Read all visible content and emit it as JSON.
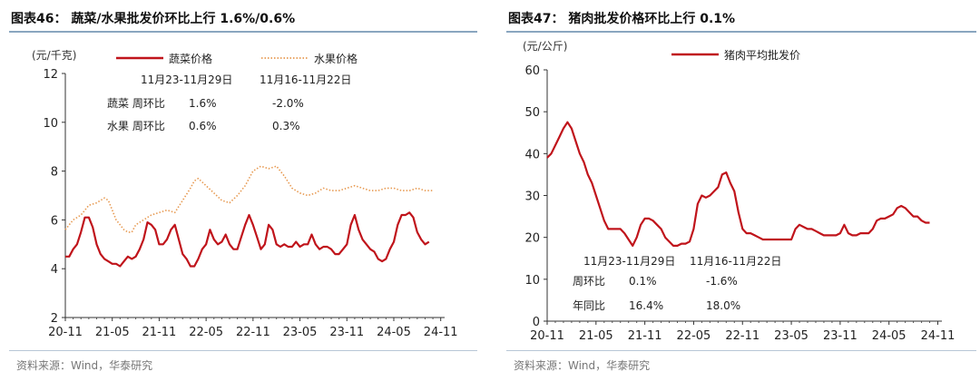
{
  "left": {
    "title": "图表46：  蔬菜/水果批发价环比上行 1.6%/0.6%",
    "source": "资料来源：Wind，华泰研究",
    "chart_data": {
      "type": "line",
      "ylabel": "(元/千克)",
      "ylim": [
        2,
        12
      ],
      "yticks": [
        "2",
        "4",
        "6",
        "8",
        "10",
        "12"
      ],
      "xticks": [
        "20-11",
        "21-05",
        "21-11",
        "22-05",
        "22-11",
        "23-05",
        "23-11",
        "24-05",
        "24-11"
      ],
      "xrange": [
        0,
        48.5
      ],
      "series": [
        {
          "name": "蔬菜价格",
          "color": "#c0141b",
          "style": "solid",
          "points": [
            [
              0,
              4.5
            ],
            [
              0.5,
              4.5
            ],
            [
              1,
              4.8
            ],
            [
              1.5,
              5.0
            ],
            [
              2,
              5.5
            ],
            [
              2.5,
              6.1
            ],
            [
              3,
              6.1
            ],
            [
              3.5,
              5.7
            ],
            [
              4,
              5.0
            ],
            [
              4.5,
              4.6
            ],
            [
              5,
              4.4
            ],
            [
              5.5,
              4.3
            ],
            [
              6,
              4.2
            ],
            [
              6.5,
              4.2
            ],
            [
              7,
              4.1
            ],
            [
              7.5,
              4.3
            ],
            [
              8,
              4.5
            ],
            [
              8.5,
              4.4
            ],
            [
              9,
              4.5
            ],
            [
              9.5,
              4.8
            ],
            [
              10,
              5.2
            ],
            [
              10.5,
              5.9
            ],
            [
              11,
              5.8
            ],
            [
              11.5,
              5.6
            ],
            [
              12,
              5.0
            ],
            [
              12.5,
              5.0
            ],
            [
              13,
              5.2
            ],
            [
              13.5,
              5.6
            ],
            [
              14,
              5.8
            ],
            [
              14.5,
              5.2
            ],
            [
              15,
              4.6
            ],
            [
              15.5,
              4.4
            ],
            [
              16,
              4.1
            ],
            [
              16.5,
              4.1
            ],
            [
              17,
              4.4
            ],
            [
              17.5,
              4.8
            ],
            [
              18,
              5.0
            ],
            [
              18.5,
              5.6
            ],
            [
              19,
              5.2
            ],
            [
              19.5,
              5.0
            ],
            [
              20,
              5.1
            ],
            [
              20.5,
              5.4
            ],
            [
              21,
              5.0
            ],
            [
              21.5,
              4.8
            ],
            [
              22,
              4.8
            ],
            [
              22.5,
              5.3
            ],
            [
              23,
              5.8
            ],
            [
              23.5,
              6.2
            ],
            [
              24,
              5.8
            ],
            [
              24.5,
              5.3
            ],
            [
              25,
              4.8
            ],
            [
              25.5,
              5.0
            ],
            [
              26,
              5.8
            ],
            [
              26.5,
              5.6
            ],
            [
              27,
              5.0
            ],
            [
              27.5,
              4.9
            ],
            [
              28,
              5.0
            ],
            [
              28.5,
              4.9
            ],
            [
              29,
              4.9
            ],
            [
              29.5,
              5.1
            ],
            [
              30,
              4.9
            ],
            [
              30.5,
              5.0
            ],
            [
              31,
              5.0
            ],
            [
              31.5,
              5.4
            ],
            [
              32,
              5.0
            ],
            [
              32.5,
              4.8
            ],
            [
              33,
              4.9
            ],
            [
              33.5,
              4.9
            ],
            [
              34,
              4.8
            ],
            [
              34.5,
              4.6
            ],
            [
              35,
              4.6
            ],
            [
              35.5,
              4.8
            ],
            [
              36,
              5.0
            ],
            [
              36.5,
              5.8
            ],
            [
              37,
              6.2
            ],
            [
              37.5,
              5.6
            ],
            [
              38,
              5.2
            ],
            [
              38.5,
              5.0
            ],
            [
              39,
              4.8
            ],
            [
              39.5,
              4.7
            ],
            [
              40,
              4.4
            ],
            [
              40.5,
              4.3
            ],
            [
              41,
              4.4
            ],
            [
              41.5,
              4.8
            ],
            [
              42,
              5.1
            ],
            [
              42.5,
              5.8
            ],
            [
              43,
              6.2
            ],
            [
              43.5,
              6.2
            ],
            [
              44,
              6.3
            ],
            [
              44.5,
              6.1
            ],
            [
              45,
              5.5
            ],
            [
              45.5,
              5.2
            ],
            [
              46,
              5.0
            ],
            [
              46.5,
              5.1
            ]
          ]
        },
        {
          "name": "水果价格",
          "color": "#e79a52",
          "style": "dotted",
          "points": [
            [
              0,
              5.6
            ],
            [
              1,
              6.0
            ],
            [
              2,
              6.2
            ],
            [
              3,
              6.6
            ],
            [
              4,
              6.7
            ],
            [
              5,
              6.9
            ],
            [
              5.5,
              6.8
            ],
            [
              6,
              6.4
            ],
            [
              6.5,
              6.0
            ],
            [
              7,
              5.8
            ],
            [
              7.5,
              5.6
            ],
            [
              8,
              5.5
            ],
            [
              8.5,
              5.5
            ],
            [
              9,
              5.8
            ],
            [
              10,
              6.0
            ],
            [
              11,
              6.2
            ],
            [
              12,
              6.3
            ],
            [
              13,
              6.4
            ],
            [
              14,
              6.3
            ],
            [
              15,
              6.8
            ],
            [
              16,
              7.3
            ],
            [
              16.5,
              7.6
            ],
            [
              17,
              7.7
            ],
            [
              18,
              7.4
            ],
            [
              19,
              7.1
            ],
            [
              20,
              6.8
            ],
            [
              21,
              6.7
            ],
            [
              22,
              7.0
            ],
            [
              23,
              7.4
            ],
            [
              24,
              8.0
            ],
            [
              25,
              8.2
            ],
            [
              26,
              8.1
            ],
            [
              27,
              8.2
            ],
            [
              28,
              7.8
            ],
            [
              29,
              7.3
            ],
            [
              30,
              7.1
            ],
            [
              31,
              7.0
            ],
            [
              32,
              7.1
            ],
            [
              33,
              7.3
            ],
            [
              34,
              7.2
            ],
            [
              35,
              7.2
            ],
            [
              36,
              7.3
            ],
            [
              37,
              7.4
            ],
            [
              38,
              7.3
            ],
            [
              39,
              7.2
            ],
            [
              40,
              7.2
            ],
            [
              41,
              7.3
            ],
            [
              42,
              7.3
            ],
            [
              43,
              7.2
            ],
            [
              44,
              7.2
            ],
            [
              45,
              7.3
            ],
            [
              46,
              7.2
            ],
            [
              47,
              7.2
            ]
          ]
        }
      ],
      "legend": [
        "蔬菜价格",
        "水果价格"
      ],
      "annotations": {
        "dates": [
          "11月23-11月29日",
          "11月16-11月22日"
        ],
        "rows": [
          {
            "label": "蔬菜  周环比",
            "values": [
              "1.6%",
              "-2.0%"
            ]
          },
          {
            "label": "水果  周环比",
            "values": [
              "0.6%",
              "0.3%"
            ]
          }
        ]
      }
    }
  },
  "right": {
    "title": "图表47：  猪肉批发价格环比上行 0.1%",
    "source": "资料来源：Wind，华泰研究",
    "chart_data": {
      "type": "line",
      "ylabel": "(元/公斤)",
      "ylim": [
        0,
        60
      ],
      "yticks": [
        "0",
        "10",
        "20",
        "30",
        "40",
        "50",
        "60"
      ],
      "xticks": [
        "20-11",
        "21-05",
        "21-11",
        "22-05",
        "22-11",
        "23-05",
        "23-11",
        "24-05",
        "24-11"
      ],
      "xrange": [
        0,
        48.5
      ],
      "series": [
        {
          "name": "猪肉平均批发价",
          "color": "#c0141b",
          "style": "solid",
          "points": [
            [
              0,
              39
            ],
            [
              0.5,
              40
            ],
            [
              1,
              42
            ],
            [
              1.5,
              44
            ],
            [
              2,
              46
            ],
            [
              2.5,
              47.5
            ],
            [
              3,
              46
            ],
            [
              3.5,
              43
            ],
            [
              4,
              40
            ],
            [
              4.5,
              38
            ],
            [
              5,
              35
            ],
            [
              5.5,
              33
            ],
            [
              6,
              30
            ],
            [
              6.5,
              27
            ],
            [
              7,
              24
            ],
            [
              7.5,
              22
            ],
            [
              8,
              22
            ],
            [
              8.5,
              22
            ],
            [
              9,
              22
            ],
            [
              9.5,
              21
            ],
            [
              10,
              19.5
            ],
            [
              10.5,
              18
            ],
            [
              11,
              20
            ],
            [
              11.5,
              23
            ],
            [
              12,
              24.5
            ],
            [
              12.5,
              24.5
            ],
            [
              13,
              24
            ],
            [
              13.5,
              23
            ],
            [
              14,
              22
            ],
            [
              14.5,
              20
            ],
            [
              15,
              19
            ],
            [
              15.5,
              18
            ],
            [
              16,
              18
            ],
            [
              16.5,
              18.5
            ],
            [
              17,
              18.5
            ],
            [
              17.5,
              19
            ],
            [
              18,
              22
            ],
            [
              18.5,
              28
            ],
            [
              19,
              30
            ],
            [
              19.5,
              29.5
            ],
            [
              20,
              30
            ],
            [
              20.5,
              31
            ],
            [
              21,
              32
            ],
            [
              21.5,
              35
            ],
            [
              22,
              35.5
            ],
            [
              22.5,
              33
            ],
            [
              23,
              31
            ],
            [
              23.5,
              26
            ],
            [
              24,
              22
            ],
            [
              24.5,
              21
            ],
            [
              25,
              21
            ],
            [
              25.5,
              20.5
            ],
            [
              26,
              20
            ],
            [
              26.5,
              19.5
            ],
            [
              27,
              19.5
            ],
            [
              27.5,
              19.5
            ],
            [
              28,
              19.5
            ],
            [
              28.5,
              19.5
            ],
            [
              29,
              19.5
            ],
            [
              29.5,
              19.5
            ],
            [
              30,
              19.5
            ],
            [
              30.5,
              22
            ],
            [
              31,
              23
            ],
            [
              31.5,
              22.5
            ],
            [
              32,
              22
            ],
            [
              32.5,
              22
            ],
            [
              33,
              21.5
            ],
            [
              33.5,
              21
            ],
            [
              34,
              20.5
            ],
            [
              34.5,
              20.5
            ],
            [
              35,
              20.5
            ],
            [
              35.5,
              20.5
            ],
            [
              36,
              21
            ],
            [
              36.5,
              23
            ],
            [
              37,
              21
            ],
            [
              37.5,
              20.5
            ],
            [
              38,
              20.5
            ],
            [
              38.5,
              21
            ],
            [
              39,
              21
            ],
            [
              39.5,
              21
            ],
            [
              40,
              22
            ],
            [
              40.5,
              24
            ],
            [
              41,
              24.5
            ],
            [
              41.5,
              24.5
            ],
            [
              42,
              25
            ],
            [
              42.5,
              25.5
            ],
            [
              43,
              27
            ],
            [
              43.5,
              27.5
            ],
            [
              44,
              27
            ],
            [
              44.5,
              26
            ],
            [
              45,
              25
            ],
            [
              45.5,
              25
            ],
            [
              46,
              24
            ],
            [
              46.5,
              23.5
            ],
            [
              47,
              23.5
            ]
          ]
        }
      ],
      "legend": [
        "猪肉平均批发价"
      ],
      "annotations": {
        "dates": [
          "11月23-11月29日",
          "11月16-11月22日"
        ],
        "rows": [
          {
            "label": "周环比",
            "values": [
              "0.1%",
              "-1.6%"
            ]
          },
          {
            "label": "年同比",
            "values": [
              "16.4%",
              "18.0%"
            ]
          }
        ]
      }
    }
  }
}
